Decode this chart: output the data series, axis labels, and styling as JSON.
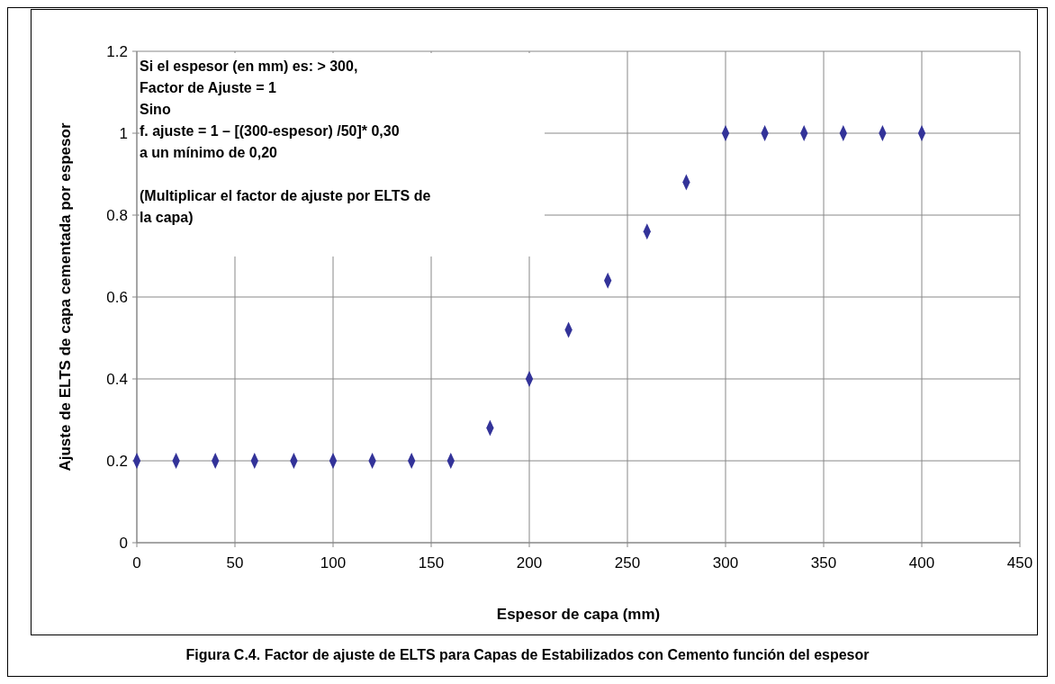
{
  "chart_data": {
    "type": "scatter",
    "xlabel": "Espesor de capa (mm)",
    "ylabel": "Ajuste de ELTS de capa cementada por espesor",
    "x": [
      0,
      20,
      40,
      60,
      80,
      100,
      120,
      140,
      160,
      180,
      200,
      220,
      240,
      260,
      280,
      300,
      320,
      340,
      360,
      380,
      400
    ],
    "values": [
      0.2,
      0.2,
      0.2,
      0.2,
      0.2,
      0.2,
      0.2,
      0.2,
      0.2,
      0.28,
      0.4,
      0.52,
      0.64,
      0.76,
      0.88,
      1,
      1,
      1,
      1,
      1,
      1
    ],
    "color": "#333399",
    "marker": "diamond",
    "grid": true,
    "xlim": [
      0,
      450
    ],
    "xticks": [
      0,
      50,
      100,
      150,
      200,
      250,
      300,
      350,
      400,
      450
    ],
    "ylim": [
      0,
      1.2
    ],
    "yticks": [
      0,
      0.2,
      0.4,
      0.6,
      0.8,
      1,
      1.2
    ],
    "annotations": [
      "Si el espesor (en mm) es: > 300,",
      "Factor de Ajuste = 1",
      "Sino",
      "f. ajuste = 1 – [(300-espesor) /50]* 0,30",
      "a un mínimo de 0,20",
      "(Multiplicar el factor de ajuste por ELTS de",
      "la capa)",
      "Figura C.4. Factor de ajuste de ELTS para Capas de Estabilizados con Cemento función del espesor"
    ]
  }
}
